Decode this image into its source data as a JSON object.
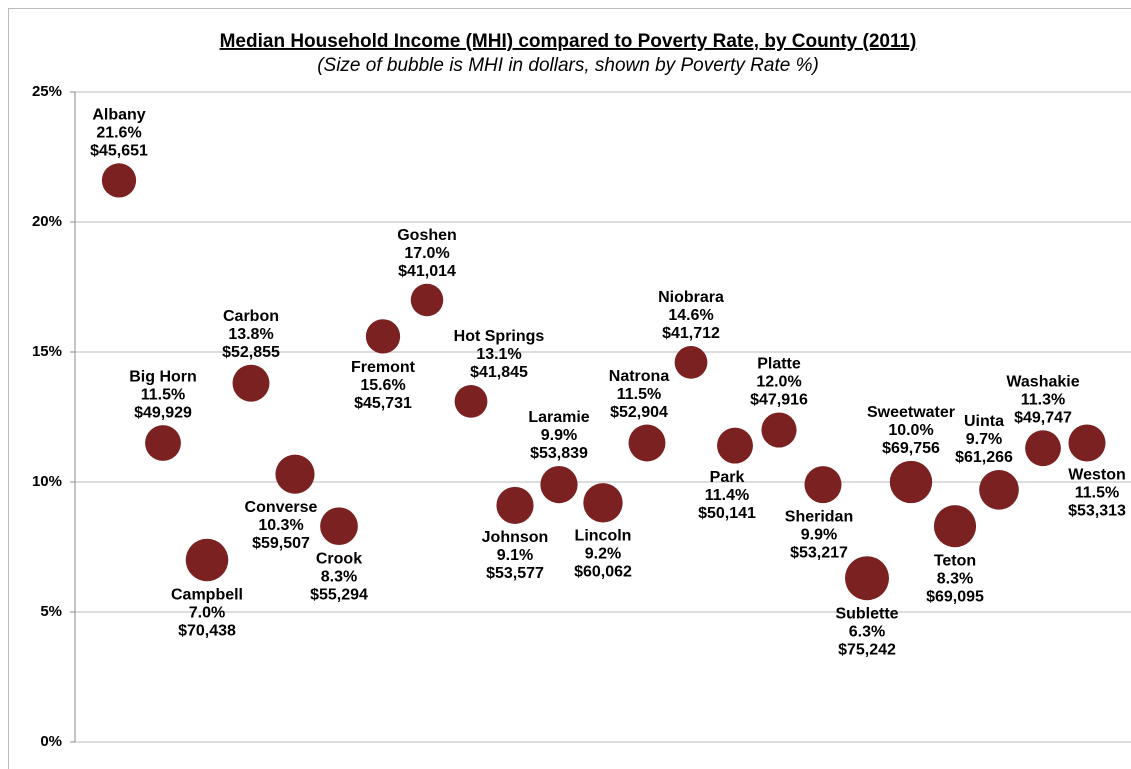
{
  "chart_data": {
    "type": "bubble",
    "title": "Median Household Income (MHI) compared to Poverty Rate, by County (2011)",
    "subtitle": "(Size of bubble is MHI in dollars, shown by Poverty Rate %)",
    "categories": [
      "Albany",
      "Big Horn",
      "Campbell",
      "Carbon",
      "Converse",
      "Crook",
      "Fremont",
      "Goshen",
      "Hot Springs",
      "Johnson",
      "Laramie",
      "Lincoln",
      "Natrona",
      "Niobrara",
      "Park",
      "Platte",
      "Sheridan",
      "Sublette",
      "Sweetwater",
      "Teton",
      "Uinta",
      "Washakie",
      "Weston"
    ],
    "values": [
      21.6,
      11.5,
      7.0,
      13.8,
      10.3,
      8.3,
      15.6,
      17.0,
      13.1,
      9.1,
      9.9,
      9.2,
      11.5,
      14.6,
      11.4,
      12.0,
      9.9,
      6.3,
      10.0,
      8.3,
      9.7,
      11.3,
      11.5
    ],
    "value_labels": [
      "21.6%",
      "11.5%",
      "7.0%",
      "13.8%",
      "10.3%",
      "8.3%",
      "15.6%",
      "17.0%",
      "13.1%",
      "9.1%",
      "9.9%",
      "9.2%",
      "11.5%",
      "14.6%",
      "11.4%",
      "12.0%",
      "9.9%",
      "6.3%",
      "10.0%",
      "8.3%",
      "9.7%",
      "11.3%",
      "11.5%"
    ],
    "sizes": [
      45651,
      49929,
      70438,
      52855,
      59507,
      55294,
      45731,
      41014,
      41845,
      53577,
      53839,
      60062,
      52904,
      41712,
      50141,
      47916,
      53217,
      75242,
      69756,
      69095,
      61266,
      49747,
      53313
    ],
    "size_labels": [
      "$45,651",
      "$49,929",
      "$70,438",
      "$52,855",
      "$59,507",
      "$55,294",
      "$45,731",
      "$41,014",
      "$41,845",
      "$53,577",
      "$53,839",
      "$60,062",
      "$52,904",
      "$41,712",
      "$50,141",
      "$47,916",
      "$53,217",
      "$75,242",
      "$69,756",
      "$69,095",
      "$61,266",
      "$49,747",
      "$53,313"
    ],
    "color": "#7b2121",
    "ylim": [
      0,
      25
    ],
    "yticks": [
      {
        "value": 0,
        "label": "0%"
      },
      {
        "value": 5,
        "label": "5%"
      },
      {
        "value": 10,
        "label": "10%"
      },
      {
        "value": 15,
        "label": "15%"
      },
      {
        "value": 20,
        "label": "20%"
      },
      {
        "value": 25,
        "label": "25%"
      }
    ],
    "grid": true
  }
}
